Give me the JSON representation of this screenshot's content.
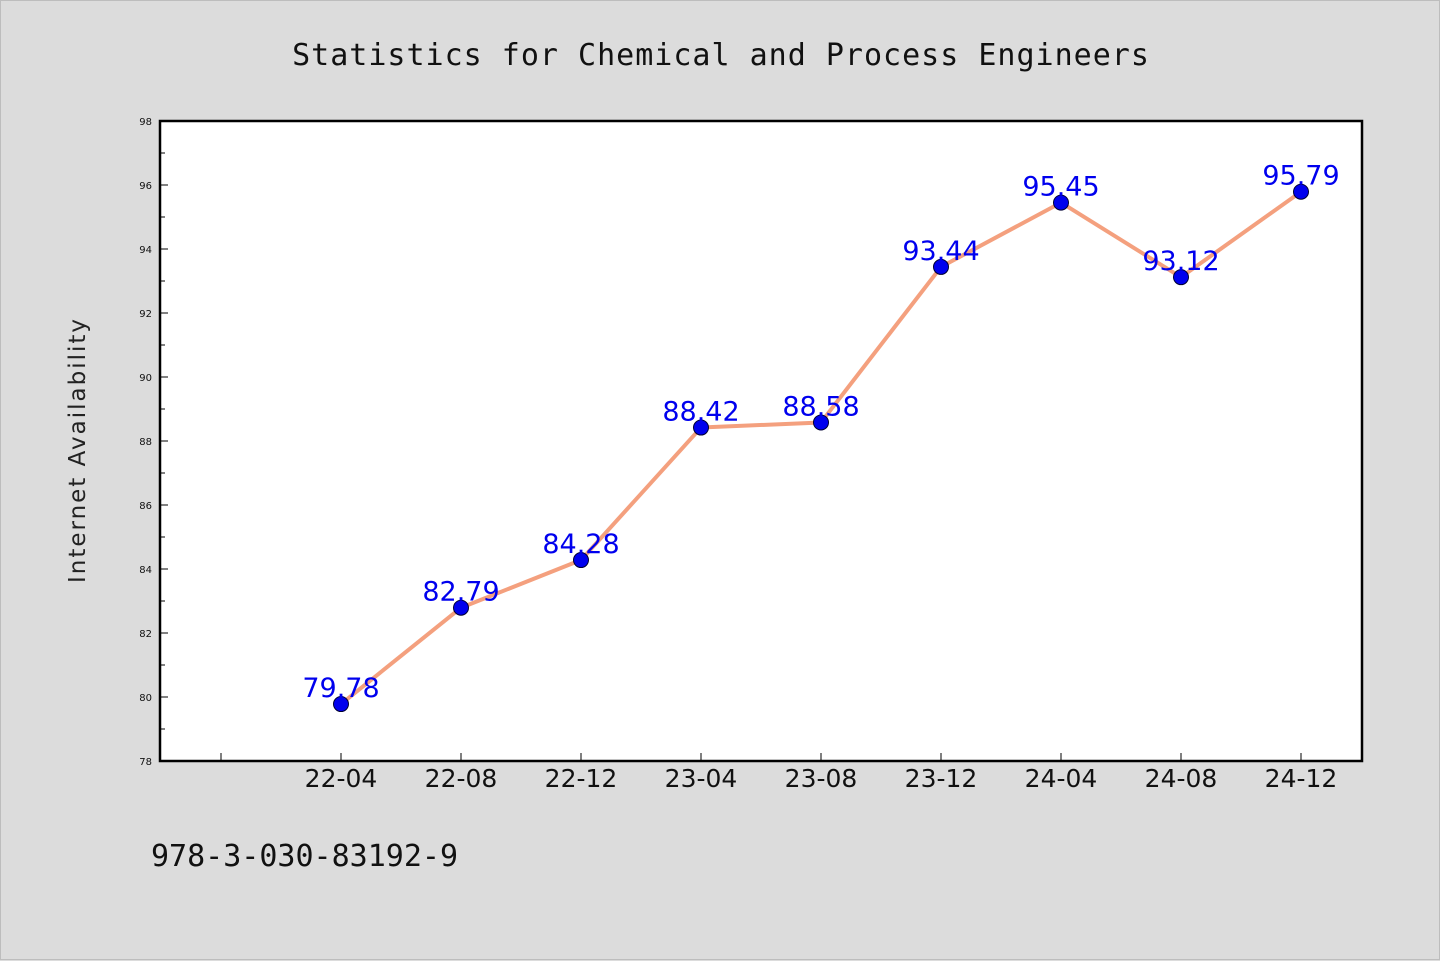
{
  "chart_data": {
    "type": "line",
    "title": "Statistics for Chemical and Process Engineers",
    "xlabel": "",
    "ylabel": "Internet Availability",
    "categories": [
      "22-04",
      "22-08",
      "22-12",
      "23-04",
      "23-08",
      "23-12",
      "24-04",
      "24-08",
      "24-12"
    ],
    "series": [
      {
        "values": [
          79.78,
          82.79,
          84.28,
          88.42,
          88.58,
          93.44,
          95.45,
          93.12,
          95.79
        ],
        "data_labels": [
          "79.78",
          "82.79",
          "84.28",
          "88.42",
          "88.58",
          "93.44",
          "95.45",
          "93.12",
          "95.79"
        ]
      }
    ],
    "ylim": [
      78,
      98
    ],
    "yticks": [
      "78",
      "80",
      "82",
      "84",
      "86",
      "88",
      "90",
      "92",
      "94",
      "96",
      "98"
    ],
    "grid": false,
    "line_color": "#f4a07e",
    "marker_color": "#0000ee",
    "label_color": "#0000ee",
    "background_color": "#dcdcdc",
    "plot_background_color": "#ffffff"
  },
  "footer": {
    "isbn": "978-3-030-83192-9"
  }
}
